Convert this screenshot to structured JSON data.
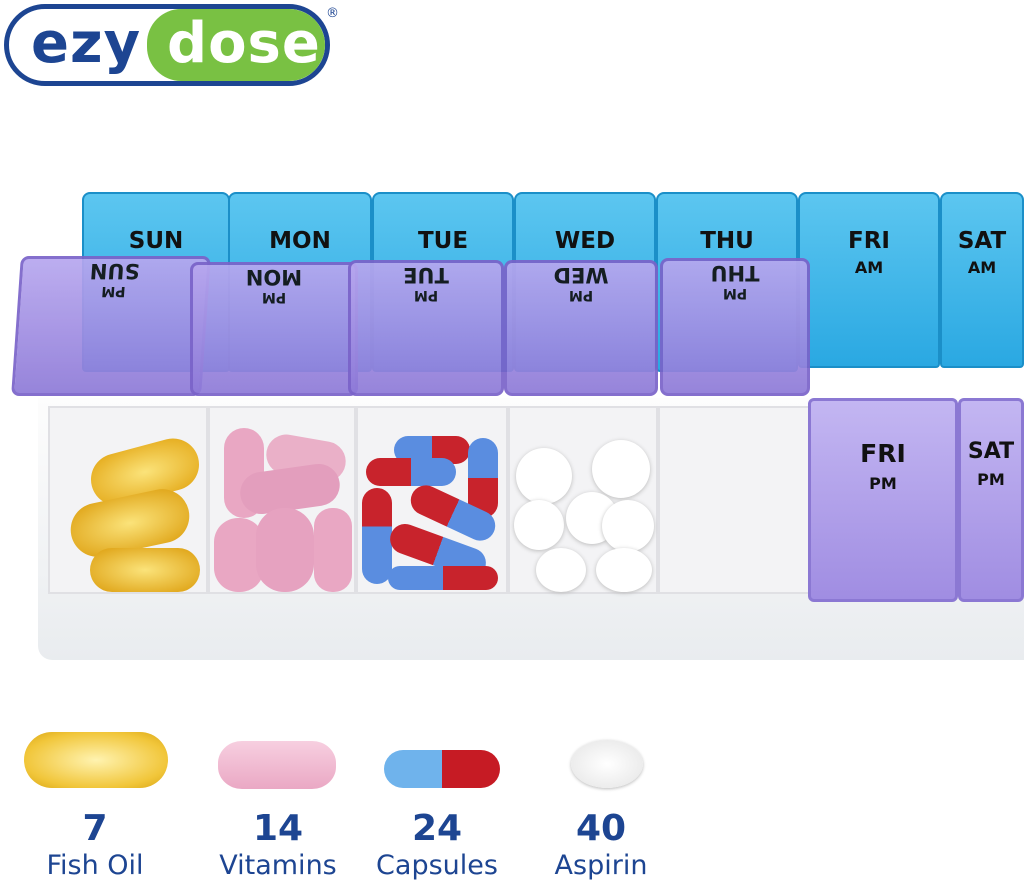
{
  "logo": {
    "left": "ezy",
    "right": "dose",
    "mark": "®"
  },
  "am_lids": [
    {
      "day": "SUN"
    },
    {
      "day": "MON"
    },
    {
      "day": "TUE"
    },
    {
      "day": "WED"
    },
    {
      "day": "THU"
    },
    {
      "day": "FRI",
      "period": "AM"
    },
    {
      "day": "SAT",
      "period": "AM"
    }
  ],
  "pm_open_lids": [
    {
      "day": "SUN",
      "period": "PM"
    },
    {
      "day": "MON",
      "period": "PM"
    },
    {
      "day": "TUE",
      "period": "PM"
    },
    {
      "day": "WED",
      "period": "PM"
    },
    {
      "day": "THU",
      "period": "PM"
    }
  ],
  "pm_closed_lids": [
    {
      "day": "FRI",
      "period": "PM"
    },
    {
      "day": "SAT",
      "period": "PM"
    }
  ],
  "capacity": [
    {
      "count": "7",
      "label": "Fish Oil"
    },
    {
      "count": "14",
      "label": "Vitamins"
    },
    {
      "count": "24",
      "label": "Capsules"
    },
    {
      "count": "40",
      "label": "Aspirin"
    }
  ],
  "colors": {
    "brand_blue": "#1d4592",
    "brand_green": "#79c143",
    "am_lid": "#2aa8e2",
    "pm_lid": "#9a86de"
  }
}
